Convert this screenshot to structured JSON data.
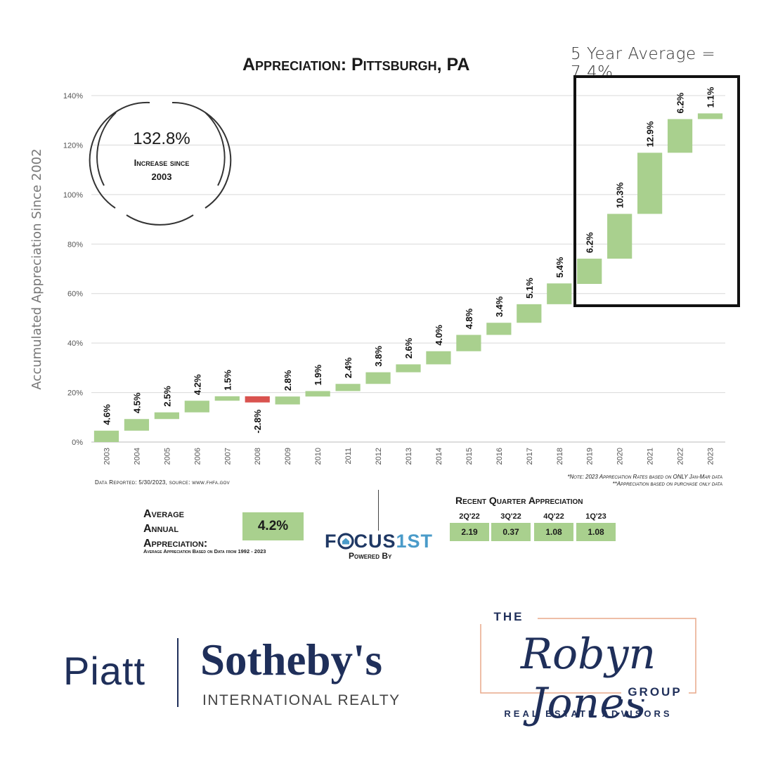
{
  "five_year_average": "5 Year Average = 7.4%",
  "chart_data": {
    "type": "waterfall",
    "title": "Appreciation: Pittsburgh, PA",
    "ylabel": "Accumulated Appreciation Since 2002",
    "ylim": [
      0,
      140
    ],
    "yticks": [
      "0%",
      "20%",
      "40%",
      "60%",
      "80%",
      "100%",
      "120%",
      "140%"
    ],
    "categories": [
      "2003",
      "2004",
      "2005",
      "2006",
      "2007",
      "2008",
      "2009",
      "2010",
      "2011",
      "2012",
      "2013",
      "2014",
      "2015",
      "2016",
      "2017",
      "2018",
      "2019",
      "2020",
      "2021",
      "2022",
      "2023"
    ],
    "labels": [
      "4.6%",
      "4.5%",
      "2.5%",
      "4.2%",
      "1.5%",
      "-2.8%",
      "2.8%",
      "1.9%",
      "2.4%",
      "3.8%",
      "2.6%",
      "4.0%",
      "4.8%",
      "3.4%",
      "5.1%",
      "5.4%",
      "6.2%",
      "10.3%",
      "12.9%",
      "6.2%",
      "1.1%"
    ],
    "series": [
      {
        "bar_bottom": [
          0,
          4.6,
          9.3,
          12.0,
          16.7,
          16.0,
          15.2,
          18.4,
          20.6,
          23.5,
          28.2,
          31.4,
          36.7,
          43.3,
          48.2,
          55.7,
          63.9,
          74.1,
          92.2,
          116.9,
          130.5
        ],
        "bar_top": [
          4.6,
          9.3,
          12.0,
          16.7,
          18.5,
          18.5,
          18.4,
          20.6,
          23.5,
          28.2,
          31.4,
          36.7,
          43.3,
          48.2,
          55.7,
          64.1,
          74.1,
          92.2,
          116.9,
          130.5,
          132.8
        ]
      }
    ],
    "colors": {
      "increase": "#a9d08e",
      "decrease": "#d9534f"
    },
    "grid": true,
    "highlight_box": "2019-2023"
  },
  "circle": {
    "value": "132.8%",
    "label_line1": "Increase since",
    "label_line2": "2003"
  },
  "source_note": "Data Reported: 5/30/2023, source: www.fhfa.gov",
  "footnote_1": "*Note: 2023 Appreciation Rates based on ONLY Jan-Mar data",
  "footnote_2": "**Appreciation based on purchase only data",
  "average": {
    "line1": "Average",
    "line2": "Annual",
    "line3": "Appreciation:",
    "value": "4.2%",
    "sub": "Average Appreciation Based on Data from 1992 - 2023"
  },
  "focus": {
    "logo_a": "F",
    "logo_icon": "house-icon",
    "logo_b": "CUS",
    "logo_c": "1ST",
    "powered_by": "Powered By"
  },
  "recent_quarters": {
    "title": "Recent Quarter Appreciation",
    "items": [
      {
        "quarter": "2Q'22",
        "value": "2.19"
      },
      {
        "quarter": "3Q'22",
        "value": "0.37"
      },
      {
        "quarter": "4Q'22",
        "value": "1.08"
      },
      {
        "quarter": "1Q'23",
        "value": "1.08"
      }
    ]
  },
  "brand": {
    "piatt": "Piatt",
    "sothebys": "Sotheby's",
    "intl": "INTERNATIONAL REALTY",
    "rj_the": "THE",
    "rj_name": "Robyn Jones",
    "rj_group": "GROUP",
    "rj_advisors": "REAL ESTATE ADVISORS"
  }
}
